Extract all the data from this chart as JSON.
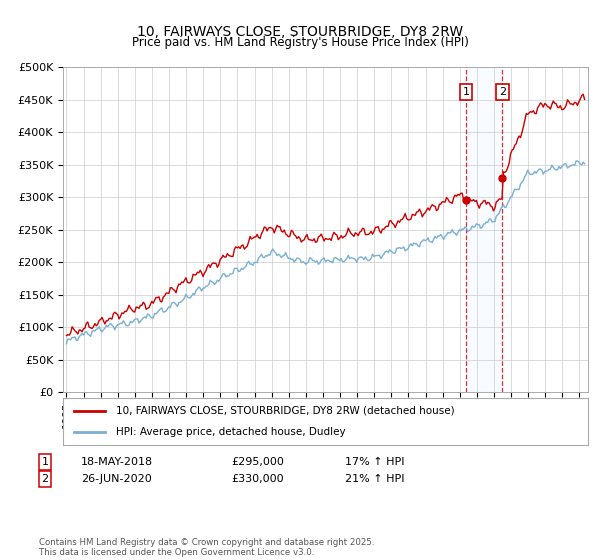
{
  "title": "10, FAIRWAYS CLOSE, STOURBRIDGE, DY8 2RW",
  "subtitle": "Price paid vs. HM Land Registry's House Price Index (HPI)",
  "ylim": [
    0,
    500000
  ],
  "yticks": [
    0,
    50000,
    100000,
    150000,
    200000,
    250000,
    300000,
    350000,
    400000,
    450000,
    500000
  ],
  "ytick_labels": [
    "£0",
    "£50K",
    "£100K",
    "£150K",
    "£200K",
    "£250K",
    "£300K",
    "£350K",
    "£400K",
    "£450K",
    "£500K"
  ],
  "xlim_start": 1994.8,
  "xlim_end": 2025.5,
  "transaction1_date": 2018.37,
  "transaction1_price": 295000,
  "transaction2_date": 2020.49,
  "transaction2_price": 330000,
  "legend_line1": "10, FAIRWAYS CLOSE, STOURBRIDGE, DY8 2RW (detached house)",
  "legend_line2": "HPI: Average price, detached house, Dudley",
  "footer": "Contains HM Land Registry data © Crown copyright and database right 2025.\nThis data is licensed under the Open Government Licence v3.0.",
  "red_color": "#cc0000",
  "blue_color": "#7ab0d4",
  "shade_color": "#ddeeff",
  "grid_color": "#cccccc",
  "bg_color": "#ffffff"
}
